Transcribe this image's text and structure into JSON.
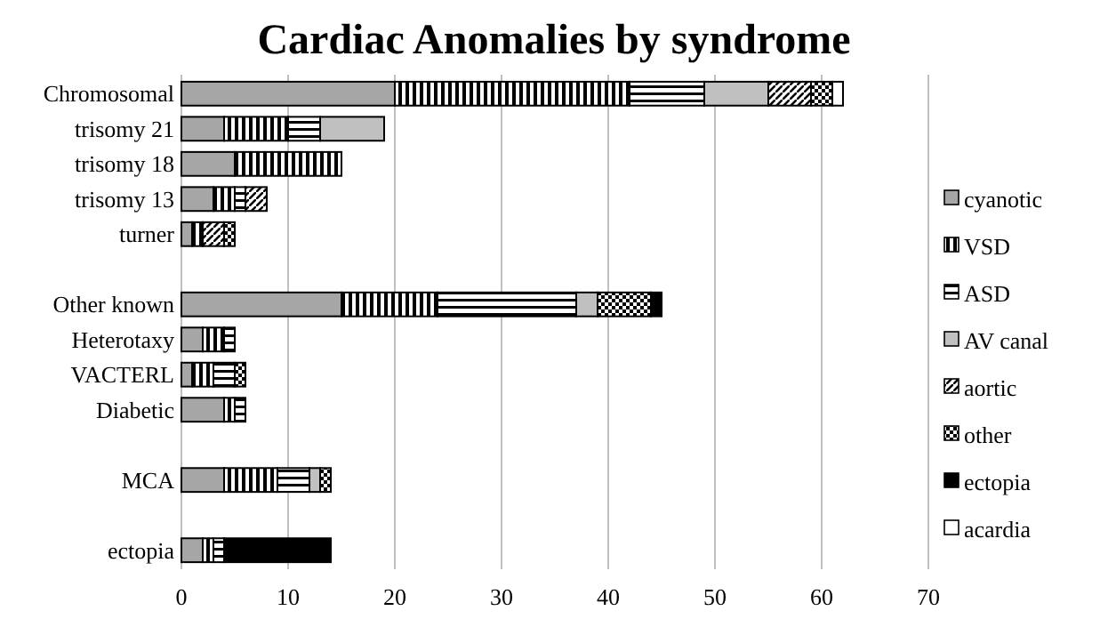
{
  "chart_data": {
    "type": "bar",
    "orientation": "horizontal",
    "stacked": true,
    "title": "Cardiac Anomalies by syndrome",
    "categories": [
      "Chromosomal",
      "trisomy 21",
      "trisomy 18",
      "trisomy 13",
      "turner",
      null,
      "Other known",
      "Heterotaxy",
      "VACTERL",
      "Diabetic",
      null,
      "MCA",
      null,
      "ectopia"
    ],
    "series": [
      {
        "name": "cyanotic",
        "color": "#a6a6a6",
        "values": [
          20,
          4,
          5,
          3,
          1,
          null,
          15,
          2,
          1,
          4,
          null,
          4,
          null,
          2
        ]
      },
      {
        "name": "VSD",
        "color": "#000000",
        "values": [
          22,
          6,
          10,
          2,
          1,
          null,
          9,
          2,
          2,
          1,
          null,
          5,
          null,
          1
        ]
      },
      {
        "name": "ASD",
        "color": "#000000",
        "values": [
          7,
          3,
          null,
          1,
          null,
          null,
          13,
          1,
          2,
          1,
          null,
          3,
          null,
          1
        ]
      },
      {
        "name": "AV canal",
        "color": "#c0c0c0",
        "values": [
          6,
          6,
          null,
          null,
          null,
          null,
          2,
          null,
          null,
          null,
          null,
          1,
          null,
          null
        ]
      },
      {
        "name": "aortic",
        "color": "#000000",
        "values": [
          4,
          null,
          null,
          2,
          2,
          null,
          null,
          null,
          null,
          null,
          null,
          null,
          null,
          null
        ]
      },
      {
        "name": "other",
        "color": "#000000",
        "values": [
          2,
          null,
          null,
          null,
          1,
          null,
          5,
          null,
          1,
          null,
          null,
          1,
          null,
          null
        ]
      },
      {
        "name": "ectopia",
        "color": "#000000",
        "values": [
          null,
          null,
          null,
          null,
          null,
          null,
          1,
          null,
          null,
          null,
          null,
          null,
          null,
          10
        ]
      },
      {
        "name": "acardia",
        "color": "#ffffff",
        "values": [
          1,
          null,
          null,
          null,
          null,
          null,
          null,
          null,
          null,
          null,
          null,
          null,
          null,
          null
        ]
      }
    ],
    "xlim": [
      0,
      70
    ],
    "xticks": [
      0,
      10,
      20,
      30,
      40,
      50,
      60,
      70
    ],
    "grid": "x",
    "legend": "right"
  }
}
